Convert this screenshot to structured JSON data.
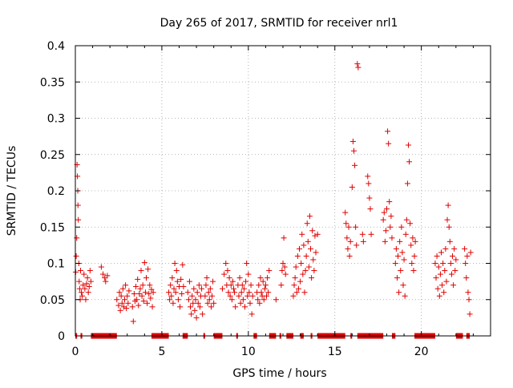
{
  "chart_data": {
    "type": "scatter",
    "title": "Day 265 of 2017, SRMTID for receiver nrl1",
    "xlabel": "GPS time / hours",
    "ylabel": "SRMTID / TECUs",
    "xlim": [
      0,
      24
    ],
    "ylim": [
      0,
      0.4
    ],
    "xticks": [
      0,
      5,
      10,
      15,
      20
    ],
    "yticks": [
      0,
      0.05,
      0.1,
      0.15,
      0.2,
      0.25,
      0.3,
      0.35,
      0.4
    ],
    "ytick_labels": [
      "0",
      "0.05",
      "0.1",
      "0.15",
      "0.2",
      "0.25",
      "0.3",
      "0.35",
      "0.4"
    ],
    "grid": true,
    "marker": "+",
    "color": "#e00000",
    "series": [
      {
        "name": "SRMTID",
        "points": [
          [
            0.02,
            0.088
          ],
          [
            0.05,
            0.11
          ],
          [
            0.08,
            0.135
          ],
          [
            0.1,
            0.236
          ],
          [
            0.12,
            0.22
          ],
          [
            0.14,
            0.2
          ],
          [
            0.15,
            0.18
          ],
          [
            0.17,
            0.16
          ],
          [
            0.2,
            0.1
          ],
          [
            0.22,
            0.075
          ],
          [
            0.25,
            0.065
          ],
          [
            0.28,
            0.05
          ],
          [
            0.3,
            0.09
          ],
          [
            0.35,
            0.06
          ],
          [
            0.4,
            0.055
          ],
          [
            0.45,
            0.07
          ],
          [
            0.5,
            0.085
          ],
          [
            0.55,
            0.065
          ],
          [
            0.6,
            0.05
          ],
          [
            0.65,
            0.072
          ],
          [
            0.7,
            0.08
          ],
          [
            0.75,
            0.06
          ],
          [
            0.8,
            0.068
          ],
          [
            0.85,
            0.09
          ],
          [
            0.9,
            0.075
          ],
          [
            1.5,
            0.095
          ],
          [
            1.6,
            0.085
          ],
          [
            1.7,
            0.08
          ],
          [
            1.75,
            0.075
          ],
          [
            1.85,
            0.083
          ],
          [
            2.4,
            0.05
          ],
          [
            2.5,
            0.042
          ],
          [
            2.55,
            0.06
          ],
          [
            2.6,
            0.035
          ],
          [
            2.65,
            0.055
          ],
          [
            2.7,
            0.045
          ],
          [
            2.75,
            0.065
          ],
          [
            2.8,
            0.04
          ],
          [
            2.85,
            0.05
          ],
          [
            2.9,
            0.07
          ],
          [
            2.95,
            0.038
          ],
          [
            3.0,
            0.055
          ],
          [
            3.05,
            0.045
          ],
          [
            3.1,
            0.062
          ],
          [
            3.3,
            0.04
          ],
          [
            3.35,
            0.02
          ],
          [
            3.4,
            0.058
          ],
          [
            3.45,
            0.048
          ],
          [
            3.5,
            0.068
          ],
          [
            3.55,
            0.05
          ],
          [
            3.6,
            0.078
          ],
          [
            3.65,
            0.042
          ],
          [
            3.7,
            0.058
          ],
          [
            3.75,
            0.065
          ],
          [
            3.8,
            0.09
          ],
          [
            3.85,
            0.055
          ],
          [
            3.9,
            0.07
          ],
          [
            3.95,
            0.048
          ],
          [
            4.0,
            0.101
          ],
          [
            4.05,
            0.06
          ],
          [
            4.1,
            0.08
          ],
          [
            4.15,
            0.045
          ],
          [
            4.2,
            0.092
          ],
          [
            4.25,
            0.058
          ],
          [
            4.3,
            0.07
          ],
          [
            4.35,
            0.052
          ],
          [
            4.4,
            0.064
          ],
          [
            4.45,
            0.04
          ],
          [
            4.5,
            0.06
          ],
          [
            5.4,
            0.06
          ],
          [
            5.45,
            0.05
          ],
          [
            5.5,
            0.07
          ],
          [
            5.55,
            0.055
          ],
          [
            5.6,
            0.08
          ],
          [
            5.65,
            0.045
          ],
          [
            5.7,
            0.065
          ],
          [
            5.75,
            0.1
          ],
          [
            5.8,
            0.06
          ],
          [
            5.85,
            0.09
          ],
          [
            5.9,
            0.075
          ],
          [
            5.95,
            0.05
          ],
          [
            6.0,
            0.068
          ],
          [
            6.05,
            0.04
          ],
          [
            6.1,
            0.078
          ],
          [
            6.15,
            0.058
          ],
          [
            6.2,
            0.098
          ],
          [
            6.25,
            0.068
          ],
          [
            6.5,
            0.06
          ],
          [
            6.55,
            0.05
          ],
          [
            6.6,
            0.075
          ],
          [
            6.65,
            0.04
          ],
          [
            6.7,
            0.03
          ],
          [
            6.75,
            0.055
          ],
          [
            6.8,
            0.045
          ],
          [
            6.85,
            0.065
          ],
          [
            6.9,
            0.035
          ],
          [
            6.95,
            0.05
          ],
          [
            7.0,
            0.025
          ],
          [
            7.05,
            0.06
          ],
          [
            7.1,
            0.045
          ],
          [
            7.15,
            0.07
          ],
          [
            7.2,
            0.04
          ],
          [
            7.25,
            0.055
          ],
          [
            7.3,
            0.065
          ],
          [
            7.35,
            0.03
          ],
          [
            7.5,
            0.055
          ],
          [
            7.55,
            0.07
          ],
          [
            7.6,
            0.08
          ],
          [
            7.65,
            0.045
          ],
          [
            7.7,
            0.06
          ],
          [
            7.75,
            0.05
          ],
          [
            7.8,
            0.065
          ],
          [
            7.85,
            0.04
          ],
          [
            7.9,
            0.055
          ],
          [
            7.95,
            0.075
          ],
          [
            8.0,
            0.045
          ],
          [
            8.5,
            0.065
          ],
          [
            8.6,
            0.085
          ],
          [
            8.7,
            0.1
          ],
          [
            8.75,
            0.07
          ],
          [
            8.8,
            0.09
          ],
          [
            8.85,
            0.06
          ],
          [
            8.9,
            0.08
          ],
          [
            8.95,
            0.055
          ],
          [
            9.0,
            0.07
          ],
          [
            9.05,
            0.05
          ],
          [
            9.1,
            0.075
          ],
          [
            9.15,
            0.065
          ],
          [
            9.2,
            0.06
          ],
          [
            9.25,
            0.04
          ],
          [
            9.4,
            0.07
          ],
          [
            9.45,
            0.055
          ],
          [
            9.5,
            0.08
          ],
          [
            9.55,
            0.045
          ],
          [
            9.6,
            0.06
          ],
          [
            9.65,
            0.07
          ],
          [
            9.7,
            0.05
          ],
          [
            9.75,
            0.065
          ],
          [
            9.8,
            0.04
          ],
          [
            9.85,
            0.075
          ],
          [
            9.9,
            0.1
          ],
          [
            9.95,
            0.055
          ],
          [
            10.0,
            0.085
          ],
          [
            10.05,
            0.06
          ],
          [
            10.1,
            0.045
          ],
          [
            10.15,
            0.07
          ],
          [
            10.2,
            0.03
          ],
          [
            10.25,
            0.055
          ],
          [
            10.5,
            0.06
          ],
          [
            10.55,
            0.05
          ],
          [
            10.6,
            0.07
          ],
          [
            10.65,
            0.045
          ],
          [
            10.7,
            0.08
          ],
          [
            10.75,
            0.06
          ],
          [
            10.8,
            0.055
          ],
          [
            10.85,
            0.075
          ],
          [
            10.9,
            0.05
          ],
          [
            10.95,
            0.065
          ],
          [
            11.0,
            0.07
          ],
          [
            11.05,
            0.055
          ],
          [
            11.1,
            0.08
          ],
          [
            11.15,
            0.06
          ],
          [
            11.2,
            0.09
          ],
          [
            11.6,
            0.05
          ],
          [
            11.9,
            0.07
          ],
          [
            11.95,
            0.09
          ],
          [
            12.0,
            0.1
          ],
          [
            12.05,
            0.135
          ],
          [
            12.1,
            0.095
          ],
          [
            12.15,
            0.085
          ],
          [
            12.6,
            0.055
          ],
          [
            12.65,
            0.07
          ],
          [
            12.7,
            0.08
          ],
          [
            12.75,
            0.095
          ],
          [
            12.8,
            0.06
          ],
          [
            12.85,
            0.11
          ],
          [
            12.9,
            0.065
          ],
          [
            12.95,
            0.12
          ],
          [
            13.0,
            0.075
          ],
          [
            13.05,
            0.1
          ],
          [
            13.1,
            0.14
          ],
          [
            13.15,
            0.085
          ],
          [
            13.2,
            0.125
          ],
          [
            13.25,
            0.06
          ],
          [
            13.3,
            0.09
          ],
          [
            13.35,
            0.11
          ],
          [
            13.4,
            0.155
          ],
          [
            13.45,
            0.13
          ],
          [
            13.5,
            0.095
          ],
          [
            13.55,
            0.165
          ],
          [
            13.6,
            0.12
          ],
          [
            13.65,
            0.08
          ],
          [
            13.7,
            0.145
          ],
          [
            13.75,
            0.105
          ],
          [
            13.8,
            0.09
          ],
          [
            13.85,
            0.138
          ],
          [
            13.9,
            0.115
          ],
          [
            14.0,
            0.14
          ],
          [
            15.6,
            0.17
          ],
          [
            15.65,
            0.155
          ],
          [
            15.7,
            0.135
          ],
          [
            15.75,
            0.12
          ],
          [
            15.8,
            0.15
          ],
          [
            15.85,
            0.11
          ],
          [
            15.9,
            0.13
          ],
          [
            16.0,
            0.205
          ],
          [
            16.05,
            0.268
          ],
          [
            16.1,
            0.255
          ],
          [
            16.15,
            0.235
          ],
          [
            16.2,
            0.15
          ],
          [
            16.25,
            0.125
          ],
          [
            16.3,
            0.375
          ],
          [
            16.35,
            0.37
          ],
          [
            16.6,
            0.14
          ],
          [
            16.65,
            0.13
          ],
          [
            16.9,
            0.22
          ],
          [
            16.95,
            0.21
          ],
          [
            17.0,
            0.19
          ],
          [
            17.05,
            0.175
          ],
          [
            17.1,
            0.14
          ],
          [
            17.8,
            0.16
          ],
          [
            17.85,
            0.17
          ],
          [
            17.9,
            0.13
          ],
          [
            17.95,
            0.145
          ],
          [
            18.0,
            0.175
          ],
          [
            18.05,
            0.282
          ],
          [
            18.1,
            0.265
          ],
          [
            18.15,
            0.185
          ],
          [
            18.2,
            0.15
          ],
          [
            18.25,
            0.165
          ],
          [
            18.3,
            0.135
          ],
          [
            18.5,
            0.1
          ],
          [
            18.55,
            0.12
          ],
          [
            18.6,
            0.08
          ],
          [
            18.65,
            0.11
          ],
          [
            18.7,
            0.06
          ],
          [
            18.75,
            0.13
          ],
          [
            18.8,
            0.09
          ],
          [
            18.85,
            0.15
          ],
          [
            18.9,
            0.115
          ],
          [
            18.95,
            0.07
          ],
          [
            19.0,
            0.105
          ],
          [
            19.05,
            0.055
          ],
          [
            19.1,
            0.14
          ],
          [
            19.15,
            0.16
          ],
          [
            19.2,
            0.21
          ],
          [
            19.25,
            0.263
          ],
          [
            19.3,
            0.24
          ],
          [
            19.35,
            0.155
          ],
          [
            19.4,
            0.125
          ],
          [
            19.45,
            0.1
          ],
          [
            19.5,
            0.135
          ],
          [
            19.55,
            0.09
          ],
          [
            19.6,
            0.11
          ],
          [
            19.65,
            0.13
          ],
          [
            20.8,
            0.1
          ],
          [
            20.85,
            0.08
          ],
          [
            20.9,
            0.11
          ],
          [
            20.95,
            0.065
          ],
          [
            21.0,
            0.095
          ],
          [
            21.05,
            0.055
          ],
          [
            21.1,
            0.085
          ],
          [
            21.15,
            0.115
          ],
          [
            21.2,
            0.07
          ],
          [
            21.25,
            0.1
          ],
          [
            21.3,
            0.06
          ],
          [
            21.35,
            0.09
          ],
          [
            21.4,
            0.12
          ],
          [
            21.45,
            0.075
          ],
          [
            21.5,
            0.16
          ],
          [
            21.55,
            0.18
          ],
          [
            21.6,
            0.15
          ],
          [
            21.65,
            0.13
          ],
          [
            21.7,
            0.1
          ],
          [
            21.75,
            0.085
          ],
          [
            21.8,
            0.11
          ],
          [
            21.85,
            0.07
          ],
          [
            21.9,
            0.12
          ],
          [
            21.95,
            0.09
          ],
          [
            22.0,
            0.105
          ],
          [
            22.5,
            0.12
          ],
          [
            22.55,
            0.1
          ],
          [
            22.6,
            0.08
          ],
          [
            22.65,
            0.11
          ],
          [
            22.7,
            0.06
          ],
          [
            22.75,
            0.05
          ],
          [
            22.8,
            0.03
          ],
          [
            22.85,
            0.115
          ]
        ]
      }
    ],
    "zero_segments": [
      [
        0.0,
        0.1
      ],
      [
        0.3,
        0.4
      ],
      [
        0.9,
        2.4
      ],
      [
        4.4,
        5.4
      ],
      [
        6.2,
        6.5
      ],
      [
        7.4,
        7.5
      ],
      [
        8.0,
        8.5
      ],
      [
        9.3,
        9.4
      ],
      [
        10.3,
        10.5
      ],
      [
        11.2,
        11.6
      ],
      [
        11.8,
        11.9
      ],
      [
        12.2,
        12.6
      ],
      [
        13.0,
        13.2
      ],
      [
        13.6,
        13.7
      ],
      [
        14.0,
        15.6
      ],
      [
        15.9,
        16.0
      ],
      [
        16.3,
        17.8
      ],
      [
        18.3,
        18.5
      ],
      [
        19.6,
        20.8
      ],
      [
        22.0,
        22.4
      ],
      [
        22.6,
        22.8
      ]
    ]
  }
}
